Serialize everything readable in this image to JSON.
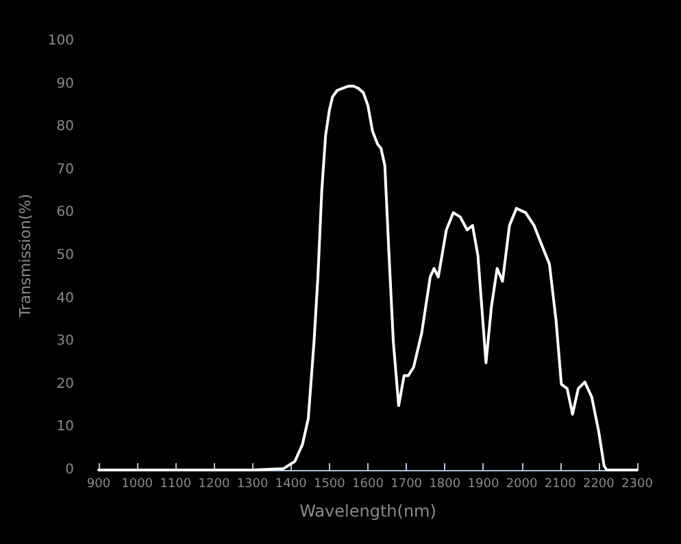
{
  "chart_data": {
    "type": "line",
    "xlabel": "Wavelength(nm)",
    "ylabel": "Transmission(%)",
    "xlim": [
      900,
      2300
    ],
    "xticks": [
      900,
      1000,
      1100,
      1200,
      1300,
      1400,
      1500,
      1600,
      1700,
      1800,
      1900,
      2000,
      2100,
      2200,
      2300
    ],
    "ylim": [
      0,
      100
    ],
    "yticks": [
      0,
      10,
      20,
      30,
      40,
      50,
      60,
      70,
      80,
      90,
      100
    ],
    "grid": false,
    "marker": "none",
    "line_style": "solid",
    "series": [
      {
        "color": "#ffffff",
        "x": [
          900,
          1000,
          1100,
          1200,
          1300,
          1380,
          1410,
          1430,
          1445,
          1460,
          1470,
          1480,
          1490,
          1500,
          1508,
          1520,
          1534,
          1550,
          1563,
          1575,
          1588,
          1600,
          1612,
          1625,
          1634,
          1644,
          1655,
          1666,
          1680,
          1694,
          1705,
          1719,
          1740,
          1762,
          1772,
          1783,
          1804,
          1822,
          1840,
          1858,
          1872,
          1886,
          1907,
          1921,
          1936,
          1950,
          1968,
          1986,
          2010,
          2032,
          2054,
          2072,
          2089,
          2103,
          2118,
          2132,
          2147,
          2164,
          2182,
          2200,
          2214,
          2221,
          2260,
          2300
        ],
        "values": [
          0,
          0,
          0,
          0,
          0,
          0.3,
          2,
          6,
          12,
          30,
          45,
          65,
          78,
          84,
          87,
          88.5,
          89,
          89.5,
          89.5,
          89,
          88,
          85,
          79,
          76,
          75,
          71,
          50,
          30,
          15,
          22,
          22,
          24,
          32,
          45,
          47,
          45,
          56,
          60,
          59,
          56,
          57,
          50,
          25,
          38,
          47,
          44,
          57,
          61,
          60,
          57,
          52,
          48,
          35,
          20,
          19,
          13,
          19,
          20.5,
          17,
          9,
          1,
          0,
          0,
          0
        ]
      }
    ]
  }
}
